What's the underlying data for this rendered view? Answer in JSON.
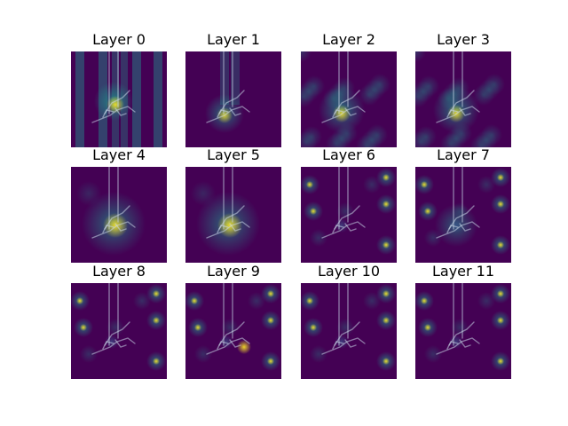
{
  "figure": {
    "panels": [
      {
        "title": "Layer 0",
        "pattern": "stripes"
      },
      {
        "title": "Layer 1",
        "pattern": "stripes-faint"
      },
      {
        "title": "Layer 2",
        "pattern": "diffuse"
      },
      {
        "title": "Layer 3",
        "pattern": "diffuse"
      },
      {
        "title": "Layer 4",
        "pattern": "focused"
      },
      {
        "title": "Layer 5",
        "pattern": "focused"
      },
      {
        "title": "Layer 6",
        "pattern": "corners"
      },
      {
        "title": "Layer 7",
        "pattern": "mixed"
      },
      {
        "title": "Layer 8",
        "pattern": "corners"
      },
      {
        "title": "Layer 9",
        "pattern": "corners-right"
      },
      {
        "title": "Layer 10",
        "pattern": "corners"
      },
      {
        "title": "Layer 11",
        "pattern": "corners"
      }
    ],
    "colors": {
      "viridis_low": "#440154",
      "viridis_mid": "#21918c",
      "viridis_high": "#fde725",
      "figure_background": "#ffffff"
    }
  }
}
